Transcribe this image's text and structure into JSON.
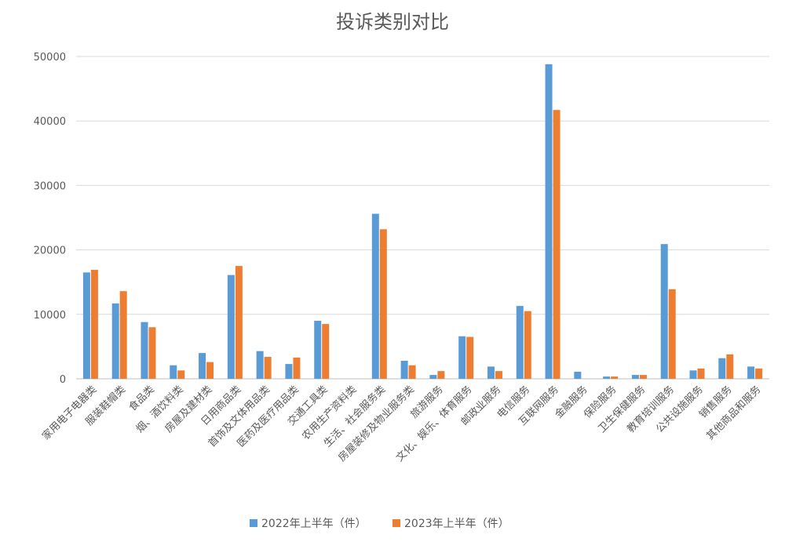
{
  "chart_data": {
    "type": "bar",
    "title": "投诉类别对比",
    "xlabel": "",
    "ylabel": "",
    "ylim": [
      0,
      50000
    ],
    "yticks": [
      0,
      10000,
      20000,
      30000,
      40000,
      50000
    ],
    "grid": true,
    "legend_position": "bottom",
    "categories": [
      "家用电子电器类",
      "服装鞋帽类",
      "食品类",
      "烟、酒饮料类",
      "房屋及建材类",
      "日用商品类",
      "首饰及文体用品类",
      "医药及医疗用品类",
      "交通工具类",
      "农用生产资料类",
      "生活、社会服务类",
      "房屋装修及物业服务类",
      "旅游服务",
      "文化、娱乐、体育服务",
      "邮政业服务",
      "电信服务",
      "互联网服务",
      "金融服务",
      "保险服务",
      "卫生保健服务",
      "教育培训服务",
      "公共设施服务",
      "销售服务",
      "其他商品和服务"
    ],
    "series": [
      {
        "name": "2022年上半年（件）",
        "color": "#5B9BD5",
        "values": [
          16500,
          11700,
          8800,
          2100,
          4000,
          16100,
          4300,
          2300,
          9000,
          0,
          25600,
          2800,
          600,
          6600,
          1900,
          11300,
          48800,
          1100,
          350,
          600,
          20900,
          1300,
          3200,
          1900
        ]
      },
      {
        "name": "2023年上半年（件）",
        "color": "#ED7D31",
        "values": [
          16900,
          13600,
          8000,
          1300,
          2600,
          17500,
          3400,
          3300,
          8500,
          0,
          23200,
          2100,
          1200,
          6500,
          1200,
          10500,
          41700,
          0,
          350,
          600,
          13900,
          1600,
          3800,
          1600
        ]
      }
    ]
  }
}
